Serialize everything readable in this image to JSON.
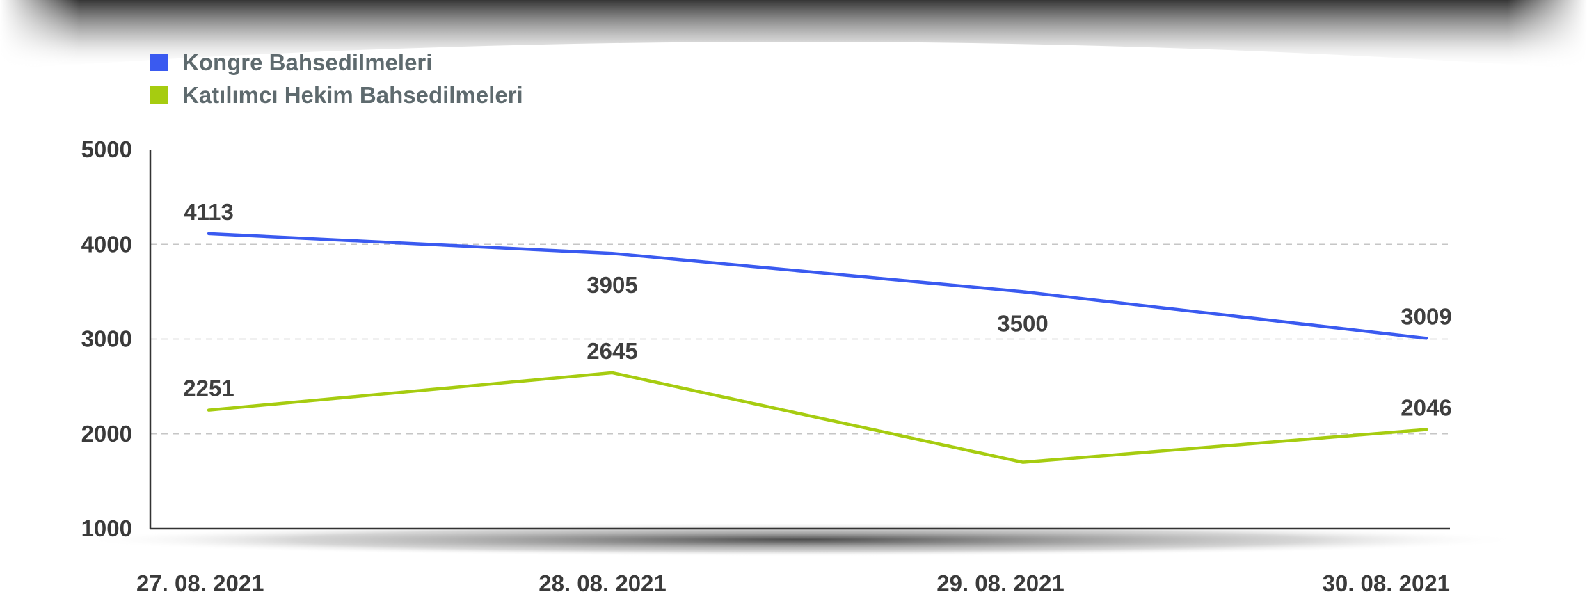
{
  "chart_data": {
    "type": "line",
    "categories": [
      "27. 08. 2021",
      "28. 08. 2021",
      "29. 08. 2021",
      "30. 08. 2021"
    ],
    "series": [
      {
        "name": "Kongre Bahsedilmeleri",
        "color": "#3a5af0",
        "values": [
          4113,
          3905,
          3500,
          3009
        ],
        "data_labels": [
          "4113",
          "3905",
          "3500",
          "3009"
        ]
      },
      {
        "name": "Katılımcı Hekim Bahsedilmeleri",
        "color": "#a6cc10",
        "values": [
          2251,
          2645,
          1700,
          2046
        ],
        "data_labels": [
          "2251",
          "2645",
          "",
          "2046"
        ]
      }
    ],
    "ylim": [
      1000,
      5000
    ],
    "yticks": [
      "1000",
      "2000",
      "3000",
      "4000",
      "5000"
    ],
    "grid": true,
    "legend": "top-left"
  }
}
